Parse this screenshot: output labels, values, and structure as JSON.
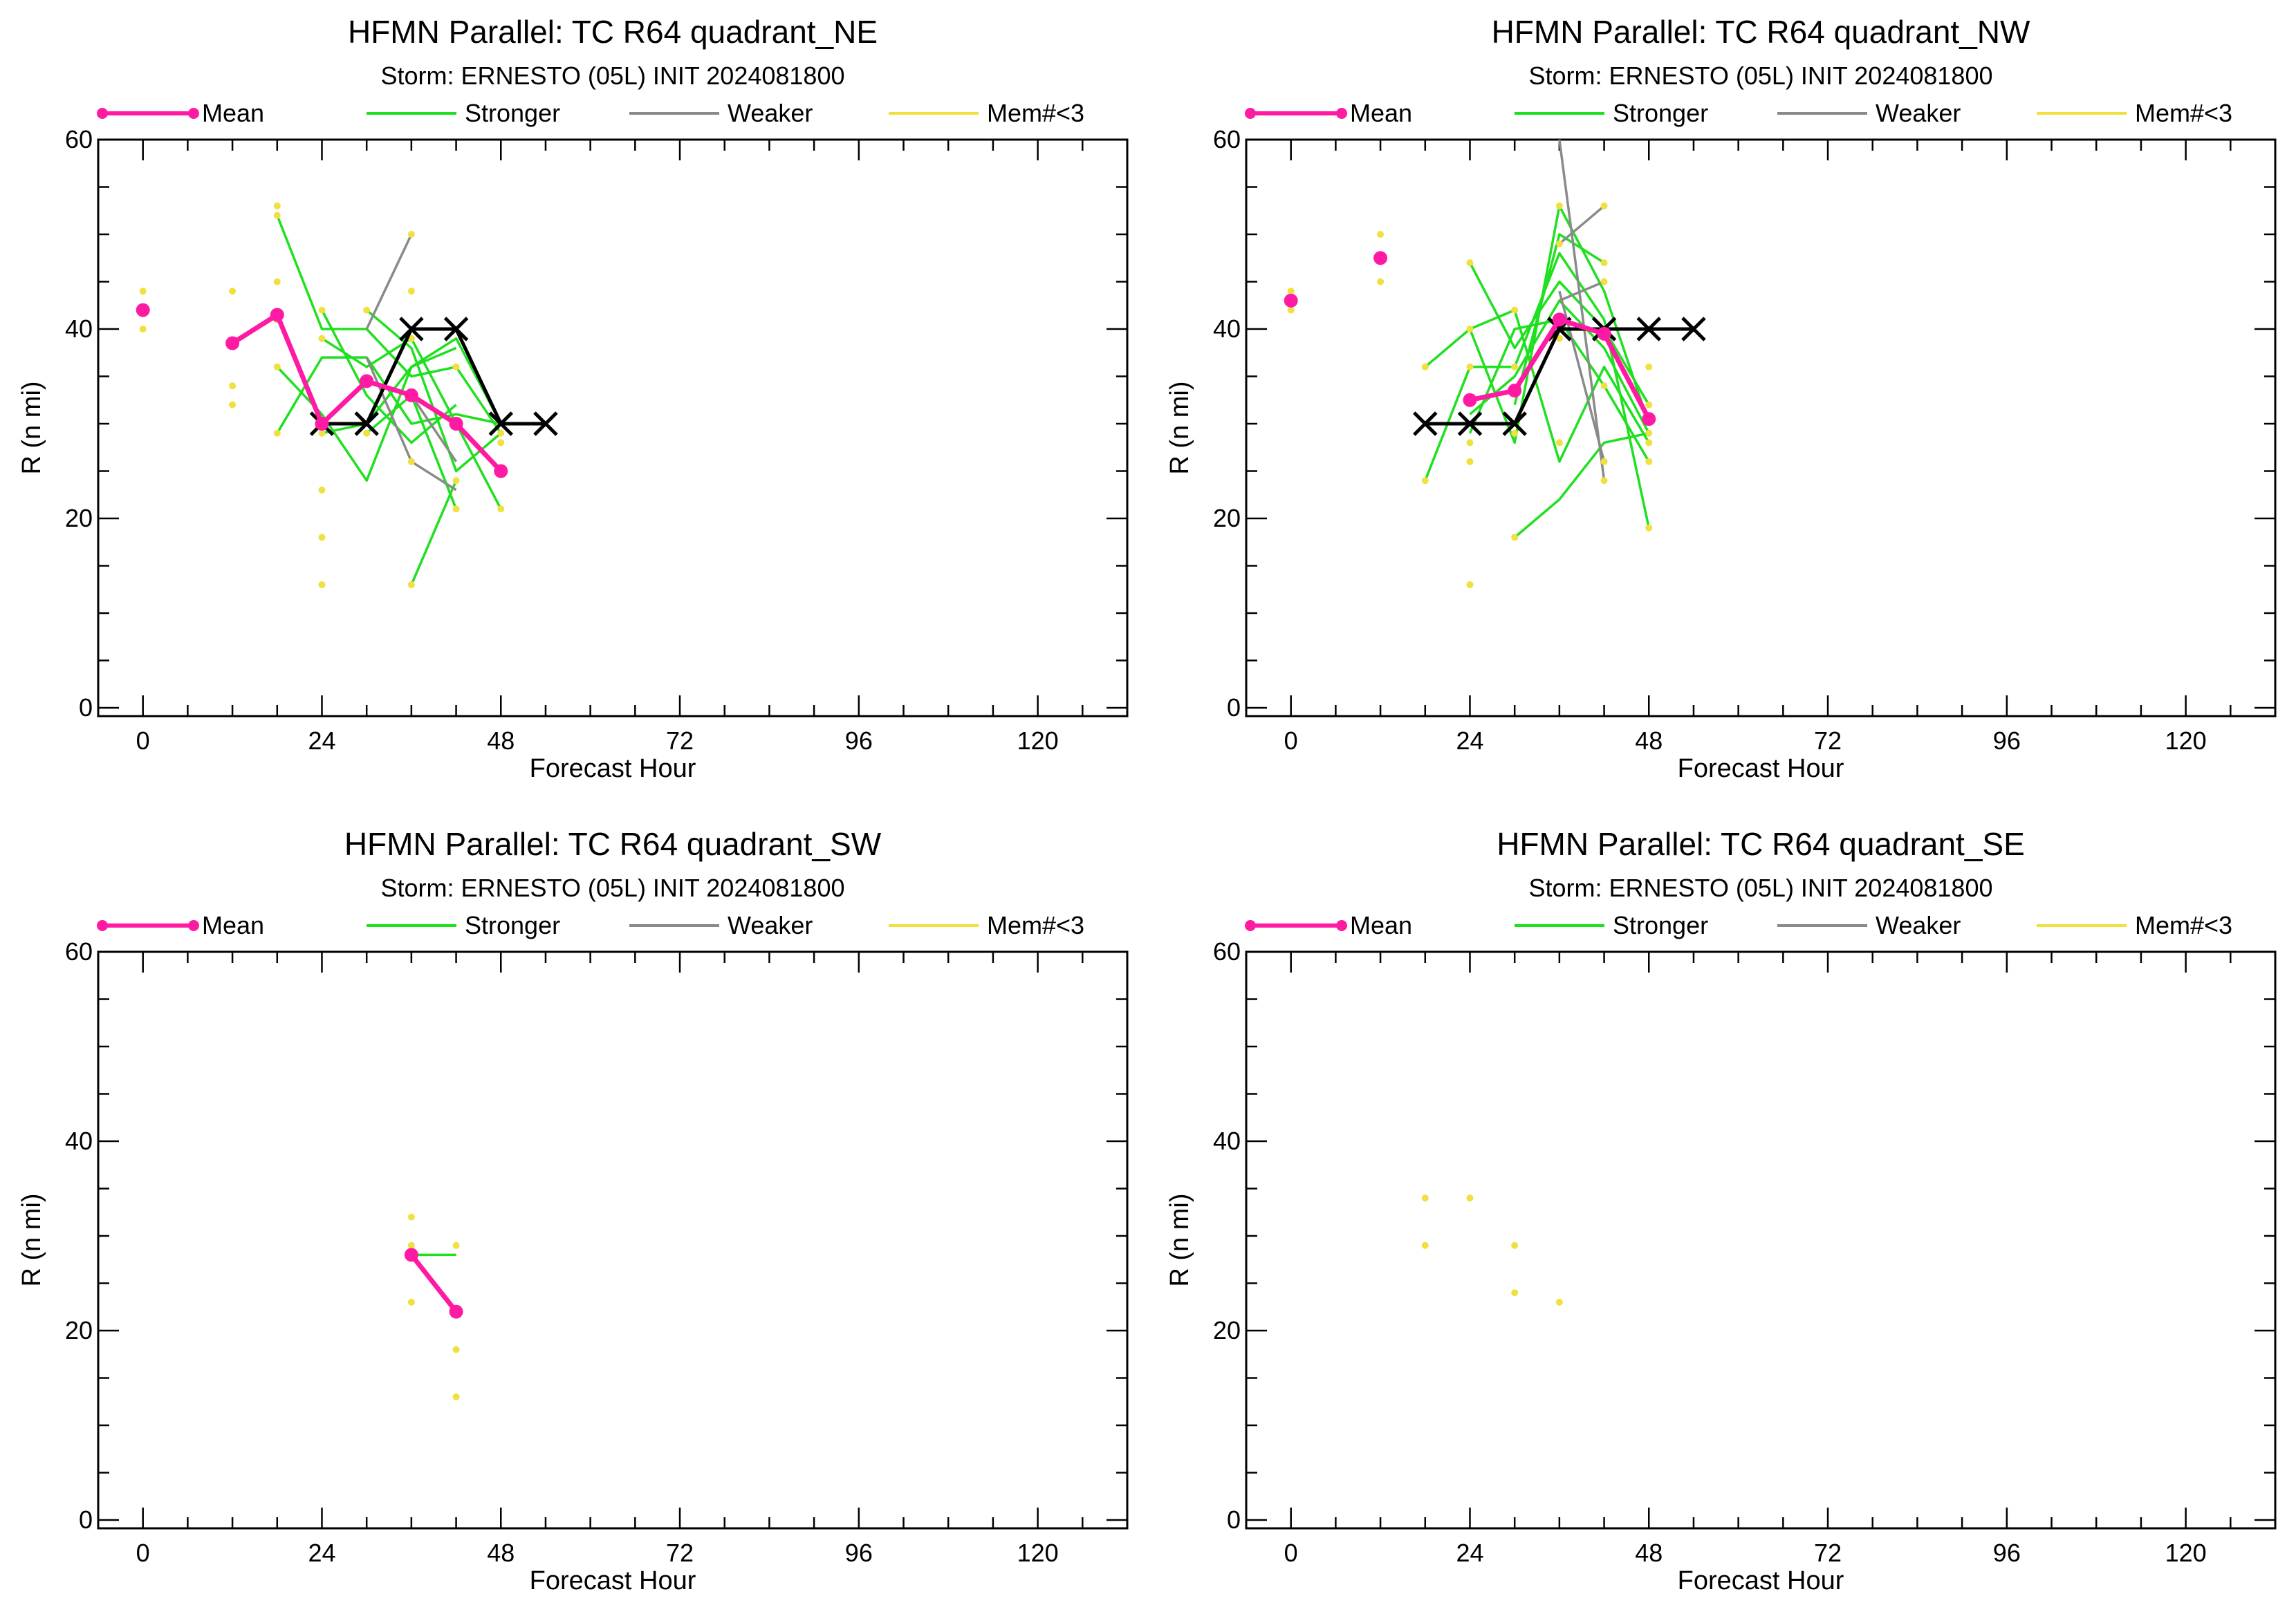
{
  "colors": {
    "mean": "#ff1aa3",
    "stronger": "#1fe01f",
    "weaker": "#8a8a8a",
    "member": "#f0e040",
    "official": "#000000"
  },
  "legend": {
    "mean": "Mean",
    "stronger": "Stronger",
    "weaker": "Weaker",
    "member": "Mem#<3"
  },
  "chart_data": [
    {
      "type": "line",
      "title": "HFMN Parallel: TC  R64 quadrant_NE",
      "subtitle": "Storm: ERNESTO (05L) INIT 2024081800",
      "xlabel": "Forecast Hour",
      "ylabel": "R (n mi)",
      "xlim": [
        -6,
        132
      ],
      "ylim": [
        0,
        60
      ],
      "xticks": [
        0,
        24,
        48,
        72,
        96,
        120
      ],
      "yticks": [
        0,
        20,
        40,
        60
      ],
      "mean": [
        [
          0,
          42
        ],
        [
          12,
          38.5
        ],
        [
          18,
          41.5
        ],
        [
          24,
          30
        ],
        [
          30,
          34.5
        ],
        [
          36,
          33
        ],
        [
          42,
          30
        ],
        [
          48,
          25
        ]
      ],
      "official": [
        [
          24,
          30
        ],
        [
          30,
          30
        ],
        [
          36,
          40
        ],
        [
          42,
          40
        ],
        [
          48,
          30
        ],
        [
          54,
          30
        ]
      ],
      "stronger": [
        [
          [
            18,
            52
          ],
          [
            24,
            40
          ],
          [
            30,
            40
          ],
          [
            36,
            35
          ],
          [
            42,
            36
          ],
          [
            48,
            29
          ]
        ],
        [
          [
            18,
            36
          ],
          [
            24,
            31
          ],
          [
            30,
            24
          ],
          [
            36,
            36
          ],
          [
            42,
            38
          ]
        ],
        [
          [
            18,
            29
          ],
          [
            24,
            37
          ],
          [
            30,
            37
          ],
          [
            36,
            30
          ],
          [
            42,
            31
          ],
          [
            48,
            30
          ]
        ],
        [
          [
            24,
            42
          ],
          [
            30,
            33
          ],
          [
            36,
            28
          ],
          [
            42,
            32
          ]
        ],
        [
          [
            24,
            39
          ],
          [
            30,
            36
          ],
          [
            36,
            39
          ],
          [
            42,
            30
          ],
          [
            48,
            21
          ]
        ],
        [
          [
            30,
            42
          ],
          [
            36,
            38
          ],
          [
            42,
            25
          ],
          [
            48,
            29
          ]
        ],
        [
          [
            30,
            29
          ],
          [
            36,
            33
          ],
          [
            42,
            21
          ]
        ],
        [
          [
            36,
            13
          ],
          [
            42,
            24
          ]
        ],
        [
          [
            24,
            29
          ],
          [
            30,
            30
          ],
          [
            36,
            36
          ],
          [
            42,
            39
          ],
          [
            48,
            30
          ]
        ]
      ],
      "weaker": [
        [
          [
            30,
            40
          ],
          [
            36,
            50
          ]
        ],
        [
          [
            36,
            33
          ],
          [
            42,
            26
          ]
        ],
        [
          [
            30,
            37
          ],
          [
            36,
            26
          ],
          [
            42,
            23
          ]
        ]
      ],
      "members": [
        [
          0,
          44
        ],
        [
          0,
          40
        ],
        [
          12,
          44
        ],
        [
          12,
          34
        ],
        [
          12,
          32
        ],
        [
          18,
          53
        ],
        [
          18,
          52
        ],
        [
          18,
          45
        ],
        [
          18,
          41
        ],
        [
          18,
          36
        ],
        [
          18,
          29
        ],
        [
          24,
          42
        ],
        [
          24,
          39
        ],
        [
          24,
          29
        ],
        [
          24,
          23
        ],
        [
          24,
          18
        ],
        [
          24,
          13
        ],
        [
          30,
          42
        ],
        [
          30,
          29
        ],
        [
          36,
          50
        ],
        [
          36,
          44
        ],
        [
          36,
          39
        ],
        [
          36,
          26
        ],
        [
          36,
          13
        ],
        [
          42,
          36
        ],
        [
          42,
          24
        ],
        [
          42,
          21
        ],
        [
          48,
          29
        ],
        [
          48,
          28
        ],
        [
          48,
          21
        ]
      ]
    },
    {
      "type": "line",
      "title": "HFMN Parallel: TC  R64 quadrant_NW",
      "subtitle": "Storm: ERNESTO (05L) INIT 2024081800",
      "xlabel": "Forecast Hour",
      "ylabel": "R (n mi)",
      "xlim": [
        -6,
        132
      ],
      "ylim": [
        0,
        60
      ],
      "xticks": [
        0,
        24,
        48,
        72,
        96,
        120
      ],
      "yticks": [
        0,
        20,
        40,
        60
      ],
      "mean": [
        [
          0,
          43
        ],
        [
          12,
          47.5
        ],
        [
          24,
          32.5
        ],
        [
          30,
          33.5
        ],
        [
          36,
          41
        ],
        [
          42,
          39.5
        ],
        [
          48,
          30.5
        ]
      ],
      "official": [
        [
          18,
          30
        ],
        [
          24,
          30
        ],
        [
          30,
          30
        ],
        [
          36,
          40
        ],
        [
          42,
          40
        ],
        [
          48,
          40
        ],
        [
          54,
          40
        ]
      ],
      "stronger": [
        [
          [
            18,
            36
          ],
          [
            24,
            40
          ],
          [
            30,
            28
          ],
          [
            36,
            53
          ],
          [
            42,
            44
          ],
          [
            48,
            30
          ]
        ],
        [
          [
            18,
            24
          ],
          [
            24,
            36
          ],
          [
            30,
            36
          ],
          [
            36,
            48
          ],
          [
            42,
            41
          ],
          [
            48,
            19
          ]
        ],
        [
          [
            24,
            47
          ],
          [
            30,
            38
          ],
          [
            36,
            45
          ],
          [
            42,
            40
          ],
          [
            48,
            32
          ]
        ],
        [
          [
            24,
            40
          ],
          [
            30,
            42
          ],
          [
            36,
            26
          ],
          [
            42,
            36
          ],
          [
            48,
            28
          ]
        ],
        [
          [
            24,
            31
          ],
          [
            30,
            35
          ],
          [
            36,
            43
          ],
          [
            42,
            38
          ],
          [
            48,
            29
          ]
        ],
        [
          [
            30,
            18
          ],
          [
            36,
            22
          ],
          [
            42,
            28
          ],
          [
            48,
            29
          ]
        ],
        [
          [
            30,
            32
          ],
          [
            36,
            50
          ],
          [
            42,
            47
          ]
        ],
        [
          [
            24,
            29
          ],
          [
            30,
            40
          ],
          [
            36,
            41
          ],
          [
            42,
            34
          ],
          [
            48,
            26
          ]
        ]
      ],
      "weaker": [
        [
          [
            36,
            60
          ],
          [
            42,
            24
          ]
        ],
        [
          [
            36,
            49
          ],
          [
            42,
            53
          ]
        ],
        [
          [
            36,
            44
          ],
          [
            42,
            26
          ]
        ],
        [
          [
            36,
            43
          ],
          [
            42,
            45
          ]
        ]
      ],
      "members": [
        [
          0,
          44
        ],
        [
          0,
          43
        ],
        [
          0,
          42
        ],
        [
          12,
          50
        ],
        [
          12,
          45
        ],
        [
          18,
          36
        ],
        [
          18,
          24
        ],
        [
          24,
          47
        ],
        [
          24,
          40
        ],
        [
          24,
          36
        ],
        [
          24,
          28
        ],
        [
          24,
          26
        ],
        [
          24,
          13
        ],
        [
          30,
          42
        ],
        [
          30,
          36
        ],
        [
          30,
          29
        ],
        [
          30,
          18
        ],
        [
          36,
          53
        ],
        [
          36,
          49
        ],
        [
          36,
          39
        ],
        [
          36,
          28
        ],
        [
          42,
          53
        ],
        [
          42,
          47
        ],
        [
          42,
          45
        ],
        [
          42,
          34
        ],
        [
          42,
          26
        ],
        [
          42,
          24
        ],
        [
          48,
          36
        ],
        [
          48,
          32
        ],
        [
          48,
          29
        ],
        [
          48,
          28
        ],
        [
          48,
          26
        ],
        [
          48,
          19
        ]
      ]
    },
    {
      "type": "line",
      "title": "HFMN Parallel: TC  R64 quadrant_SW",
      "subtitle": "Storm: ERNESTO (05L) INIT 2024081800",
      "xlabel": "Forecast Hour",
      "ylabel": "R (n mi)",
      "xlim": [
        -6,
        132
      ],
      "ylim": [
        0,
        60
      ],
      "xticks": [
        0,
        24,
        48,
        72,
        96,
        120
      ],
      "yticks": [
        0,
        20,
        40,
        60
      ],
      "mean": [
        [
          36,
          28
        ],
        [
          42,
          22
        ]
      ],
      "official": [],
      "stronger": [
        [
          [
            36,
            28
          ],
          [
            42,
            28
          ]
        ]
      ],
      "weaker": [],
      "members": [
        [
          36,
          32
        ],
        [
          36,
          29
        ],
        [
          36,
          23
        ],
        [
          42,
          29
        ],
        [
          42,
          18
        ],
        [
          42,
          13
        ]
      ]
    },
    {
      "type": "line",
      "title": "HFMN Parallel: TC  R64 quadrant_SE",
      "subtitle": "Storm: ERNESTO (05L) INIT 2024081800",
      "xlabel": "Forecast Hour",
      "ylabel": "R (n mi)",
      "xlim": [
        -6,
        132
      ],
      "ylim": [
        0,
        60
      ],
      "xticks": [
        0,
        24,
        48,
        72,
        96,
        120
      ],
      "yticks": [
        0,
        20,
        40,
        60
      ],
      "mean": [],
      "official": [],
      "stronger": [],
      "weaker": [],
      "members": [
        [
          18,
          34
        ],
        [
          18,
          29
        ],
        [
          24,
          34
        ],
        [
          30,
          29
        ],
        [
          30,
          24
        ],
        [
          36,
          23
        ]
      ]
    }
  ]
}
